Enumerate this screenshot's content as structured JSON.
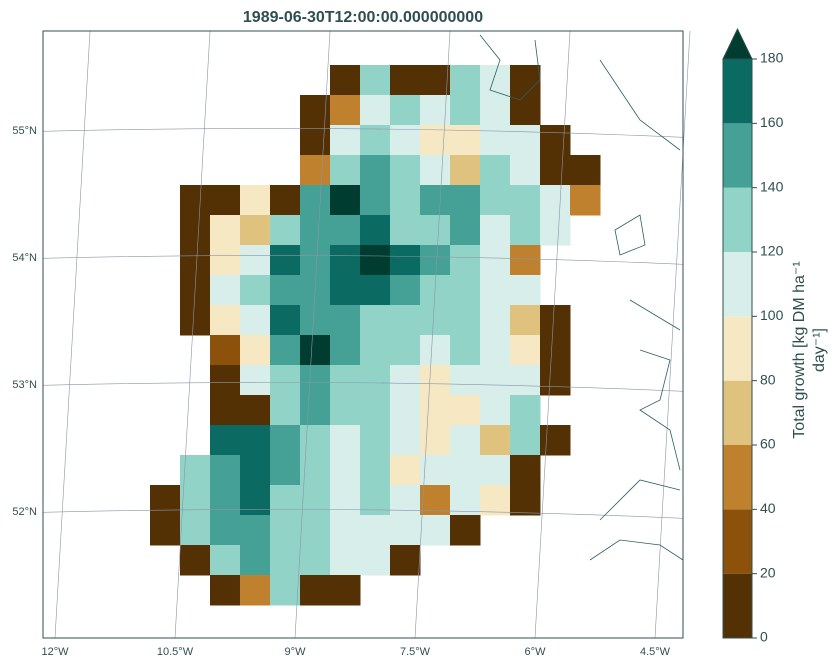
{
  "chart_data": {
    "type": "map",
    "title": "1989-06-30T12:00:00.000000000",
    "lon_lim": [
      -12.15,
      -4.15
    ],
    "lat_lim": [
      51.01,
      55.79
    ],
    "lon_ticks": [
      {
        "value": -12,
        "label": "12°W"
      },
      {
        "value": -10.5,
        "label": "10.5°W"
      },
      {
        "value": -9,
        "label": "9°W"
      },
      {
        "value": -7.5,
        "label": "7.5°W"
      },
      {
        "value": -6,
        "label": "6°W"
      },
      {
        "value": -4.5,
        "label": "4.5°W"
      }
    ],
    "lat_ticks": [
      {
        "value": 55,
        "label": "55°N"
      },
      {
        "value": 54,
        "label": "54°N"
      },
      {
        "value": 53,
        "label": "53°N"
      },
      {
        "value": 52,
        "label": "52°N"
      }
    ],
    "colorbar": {
      "label": [
        "Total growth [kg DM ha⁻¹",
        "day⁻¹]"
      ],
      "levels": [
        0,
        20,
        40,
        60,
        80,
        100,
        120,
        140,
        160,
        180
      ],
      "colors": [
        "#543005",
        "#8c510a",
        "#bf812d",
        "#dfc27d",
        "#f6e8c3",
        "#d7eeea",
        "#92d3c8",
        "#45a195",
        "#0b6b63"
      ],
      "extend_color": "#003c30"
    },
    "grid": [
      [
        null,
        null,
        null,
        null,
        null,
        null,
        10,
        130,
        10,
        10,
        130,
        110,
        10,
        null,
        null
      ],
      [
        null,
        null,
        null,
        null,
        null,
        10,
        50,
        110,
        130,
        110,
        130,
        110,
        10,
        null,
        null
      ],
      [
        null,
        null,
        null,
        null,
        null,
        10,
        110,
        130,
        110,
        90,
        90,
        110,
        110,
        10,
        null
      ],
      [
        null,
        null,
        null,
        null,
        null,
        50,
        130,
        150,
        130,
        110,
        70,
        130,
        110,
        10,
        10
      ],
      [
        null,
        10,
        10,
        90,
        10,
        150,
        190,
        150,
        130,
        150,
        150,
        130,
        130,
        110,
        50
      ],
      [
        null,
        10,
        90,
        70,
        130,
        150,
        150,
        170,
        130,
        130,
        150,
        110,
        130,
        110,
        null
      ],
      [
        null,
        10,
        90,
        110,
        170,
        150,
        170,
        190,
        170,
        150,
        130,
        110,
        50,
        null,
        null
      ],
      [
        null,
        10,
        110,
        130,
        150,
        150,
        170,
        170,
        150,
        130,
        130,
        110,
        110,
        null,
        null
      ],
      [
        null,
        10,
        90,
        110,
        170,
        150,
        150,
        130,
        130,
        130,
        130,
        110,
        70,
        10,
        null
      ],
      [
        null,
        null,
        30,
        90,
        150,
        190,
        150,
        130,
        130,
        110,
        130,
        110,
        90,
        10,
        null
      ],
      [
        null,
        null,
        10,
        110,
        130,
        150,
        130,
        130,
        110,
        90,
        110,
        110,
        110,
        10,
        null
      ],
      [
        null,
        null,
        10,
        10,
        130,
        150,
        130,
        130,
        110,
        90,
        90,
        110,
        130,
        null,
        null
      ],
      [
        null,
        null,
        170,
        170,
        150,
        130,
        110,
        130,
        110,
        90,
        110,
        70,
        130,
        10,
        null
      ],
      [
        null,
        130,
        150,
        170,
        150,
        130,
        110,
        130,
        90,
        110,
        110,
        110,
        10,
        null,
        null
      ],
      [
        10,
        130,
        150,
        170,
        130,
        130,
        110,
        130,
        110,
        50,
        110,
        90,
        10,
        null,
        null
      ],
      [
        10,
        130,
        150,
        150,
        130,
        130,
        110,
        110,
        110,
        110,
        10,
        null,
        null,
        null,
        null
      ],
      [
        null,
        10,
        130,
        150,
        130,
        130,
        110,
        110,
        10,
        null,
        null,
        null,
        null,
        null,
        null
      ],
      [
        null,
        null,
        10,
        50,
        130,
        10,
        10,
        null,
        null,
        null,
        null,
        null,
        null,
        null,
        null
      ]
    ]
  }
}
